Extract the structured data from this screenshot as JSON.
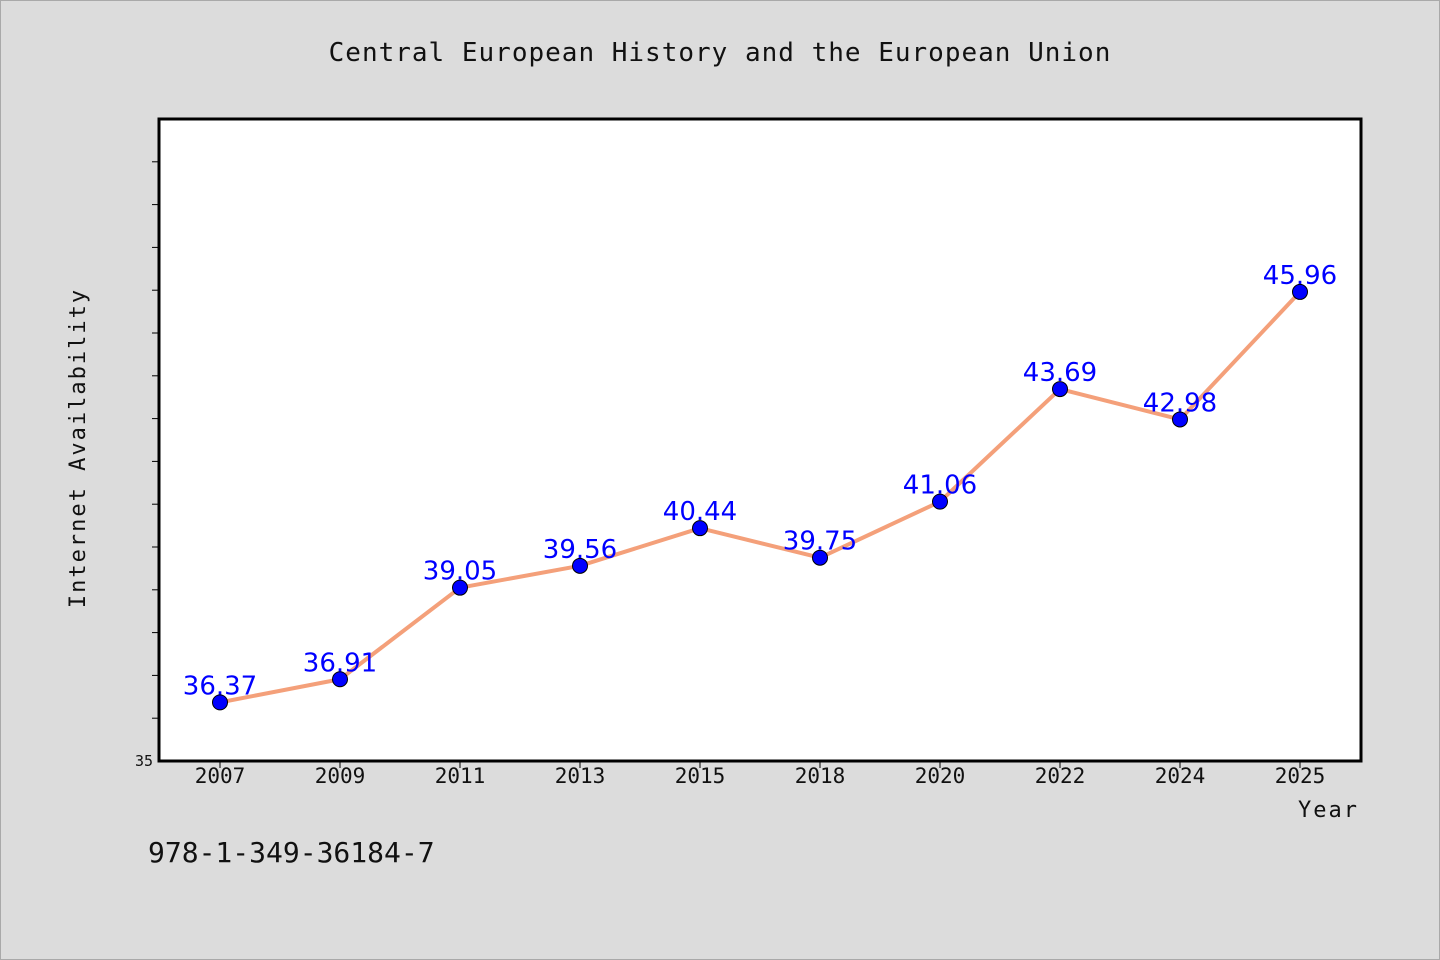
{
  "colors": {
    "background": "#dcdcdc",
    "plot_background": "#ffffff",
    "line": "#f4a07a",
    "marker": "#0000ff",
    "data_label": "#0000ff"
  },
  "footer": {
    "isbn": "978-1-349-36184-7"
  },
  "chart_data": {
    "type": "line",
    "title": "Central European History and the European Union",
    "xlabel": "Year",
    "ylabel": "Internet Availability",
    "categories": [
      "2007",
      "2009",
      "2011",
      "2013",
      "2015",
      "2018",
      "2020",
      "2022",
      "2024",
      "2025"
    ],
    "series": [
      {
        "values": [
          36.37,
          36.91,
          39.05,
          39.56,
          40.44,
          39.75,
          41.06,
          43.69,
          42.98,
          45.96
        ],
        "labels": [
          "36.37",
          "36.91",
          "39.05",
          "39.56",
          "40.44",
          "39.75",
          "41.06",
          "43.69",
          "42.98",
          "45.96"
        ]
      }
    ],
    "ylim": [
      35,
      50
    ],
    "y_tick_labels": [
      "35"
    ],
    "grid": false,
    "legend": "none"
  }
}
